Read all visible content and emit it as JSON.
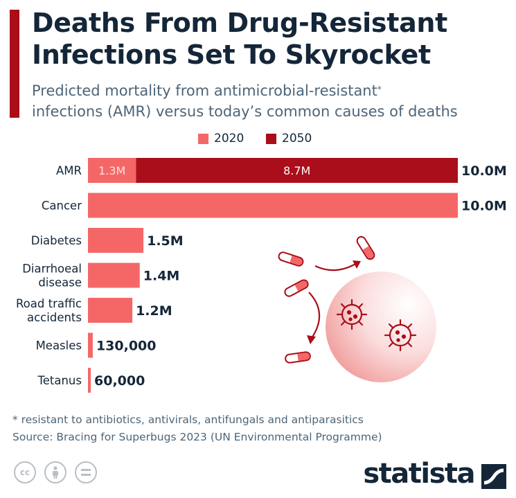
{
  "header": {
    "title": "Deaths From Drug-Resistant Infections Set To Skyrocket",
    "subtitle_line1": "Predicted mortality from antimicrobial-resistant",
    "subtitle_asterisk": "*",
    "subtitle_line2": "infections (AMR) versus today’s common causes of deaths"
  },
  "colors": {
    "accent": "#a90e1a",
    "bar_2020": "#f56767",
    "bar_2050": "#a90e1a",
    "text_dark": "#142638",
    "text_muted": "#4d6578"
  },
  "chart_data": {
    "type": "bar",
    "orientation": "horizontal",
    "stacked": true,
    "categories": [
      "AMR",
      "Cancer",
      "Diabetes",
      "Diarrhoeal disease",
      "Road traffic accidents",
      "Measles",
      "Tetanus"
    ],
    "series": [
      {
        "name": "2020",
        "values": [
          1300000,
          10000000,
          1500000,
          1400000,
          1200000,
          130000,
          60000
        ]
      },
      {
        "name": "2050",
        "values": [
          8700000,
          0,
          0,
          0,
          0,
          0,
          0
        ]
      }
    ],
    "segment_labels": [
      [
        "1.3M",
        "8.7M"
      ],
      [],
      [],
      [],
      [],
      [],
      []
    ],
    "total_labels": [
      "10.0M",
      "10.0M",
      "1.5M",
      "1.4M",
      "1.2M",
      "130,000",
      "60,000"
    ],
    "category_label_lines": [
      [
        "AMR"
      ],
      [
        "Cancer"
      ],
      [
        "Diabetes"
      ],
      [
        "Diarrhoeal",
        "disease"
      ],
      [
        "Road traffic",
        "accidents"
      ],
      [
        "Measles"
      ],
      [
        "Tetanus"
      ]
    ],
    "xlim": [
      0,
      10000000
    ],
    "legend_position": "top-center",
    "grid": false
  },
  "illustration": {
    "icons": [
      "pill-icon",
      "virus-icon",
      "arrow-icon"
    ]
  },
  "footer": {
    "footnote": "* resistant to antibiotics, antivirals, antifungals and antiparasitics",
    "source": "Source: Bracing for Superbugs 2023 (UN Environmental Programme)",
    "brand": "statista",
    "license_icons": [
      "cc-icon",
      "attribution-icon",
      "no-derivatives-icon"
    ]
  }
}
